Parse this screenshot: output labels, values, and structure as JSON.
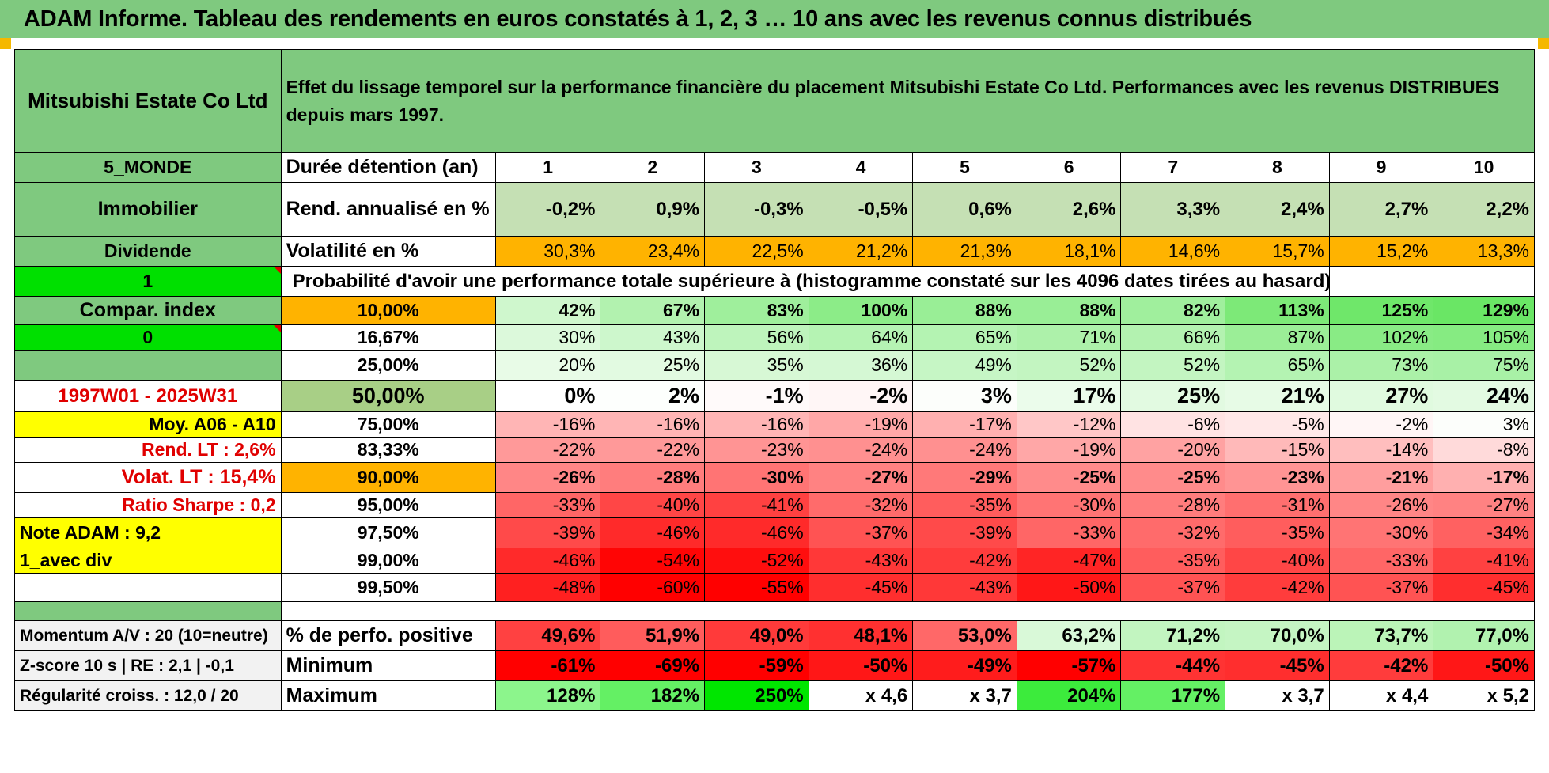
{
  "title": "ADAM Informe. Tableau des rendements en euros constatés à 1, 2, 3 … 10 ans avec les revenus connus distribués",
  "company": "Mitsubishi Estate Co Ltd",
  "header_description": "Effet du lissage temporel sur la performance financière du placement Mitsubishi Estate Co Ltd. Performances avec les revenus DISTRIBUES depuis mars 1997.",
  "colors": {
    "title_bg": "#7fc97f",
    "label_green": "#7fc97f",
    "bright_green": "#00e000",
    "yellow": "#ffff00",
    "orange": "#ffb300",
    "red_text": "#e00000"
  },
  "left": {
    "region": "5_MONDE",
    "sector": "Immobilier",
    "income_type": "Dividende",
    "selector_1": "1",
    "compar_index": "Compar. index",
    "selector_0": "0",
    "period": "1997W01 - 2025W31",
    "moy": "Moy. A06 - A10",
    "rend_lt": "Rend. LT :    2,6%",
    "volat_lt": "Volat. LT :    15,4%",
    "sharpe": "Ratio Sharpe :     0,2",
    "note": "Note ADAM : 9,2",
    "variant": "1_avec div",
    "momentum": "Momentum A/V : 20 (10=neutre)",
    "zscore": "Z-score 10 s | RE : 2,1 | -0,1",
    "regularite": "Régularité croiss. : 12,0 / 20"
  },
  "years": [
    "1",
    "2",
    "3",
    "4",
    "5",
    "6",
    "7",
    "8",
    "9",
    "10"
  ],
  "rows": {
    "duree_label": "Durée détention (an)",
    "rend_label": "Rend. annualisé en %",
    "rend_values": [
      "-0,2%",
      "0,9%",
      "-0,3%",
      "-0,5%",
      "0,6%",
      "2,6%",
      "3,3%",
      "2,4%",
      "2,7%",
      "2,2%"
    ],
    "vol_label": "Volatilité en %",
    "vol_values": [
      "30,3%",
      "23,4%",
      "22,5%",
      "21,2%",
      "21,3%",
      "18,1%",
      "14,6%",
      "15,7%",
      "15,2%",
      "13,3%"
    ],
    "prob_label": "Probabilité d'avoir une performance totale supérieure à (histogramme constaté sur les 4096 dates tirées au hasard)"
  },
  "probability_table": [
    {
      "level": "10,00%",
      "values": [
        "42%",
        "67%",
        "83%",
        "100%",
        "88%",
        "88%",
        "82%",
        "113%",
        "125%",
        "129%"
      ]
    },
    {
      "level": "16,67%",
      "values": [
        "30%",
        "43%",
        "56%",
        "64%",
        "65%",
        "71%",
        "66%",
        "87%",
        "102%",
        "105%"
      ]
    },
    {
      "level": "25,00%",
      "values": [
        "20%",
        "25%",
        "35%",
        "36%",
        "49%",
        "52%",
        "52%",
        "65%",
        "73%",
        "75%"
      ]
    },
    {
      "level": "50,00%",
      "values": [
        "0%",
        "2%",
        "-1%",
        "-2%",
        "3%",
        "17%",
        "25%",
        "21%",
        "27%",
        "24%"
      ]
    },
    {
      "level": "75,00%",
      "values": [
        "-16%",
        "-16%",
        "-16%",
        "-19%",
        "-17%",
        "-12%",
        "-6%",
        "-5%",
        "-2%",
        "3%"
      ]
    },
    {
      "level": "83,33%",
      "values": [
        "-22%",
        "-22%",
        "-23%",
        "-24%",
        "-24%",
        "-19%",
        "-20%",
        "-15%",
        "-14%",
        "-8%"
      ]
    },
    {
      "level": "90,00%",
      "values": [
        "-26%",
        "-28%",
        "-30%",
        "-27%",
        "-29%",
        "-25%",
        "-25%",
        "-23%",
        "-21%",
        "-17%"
      ]
    },
    {
      "level": "95,00%",
      "values": [
        "-33%",
        "-40%",
        "-41%",
        "-32%",
        "-35%",
        "-30%",
        "-28%",
        "-31%",
        "-26%",
        "-27%"
      ]
    },
    {
      "level": "97,50%",
      "values": [
        "-39%",
        "-46%",
        "-46%",
        "-37%",
        "-39%",
        "-33%",
        "-32%",
        "-35%",
        "-30%",
        "-34%"
      ]
    },
    {
      "level": "99,00%",
      "values": [
        "-46%",
        "-54%",
        "-52%",
        "-43%",
        "-42%",
        "-47%",
        "-35%",
        "-40%",
        "-33%",
        "-41%"
      ]
    },
    {
      "level": "99,50%",
      "values": [
        "-48%",
        "-60%",
        "-55%",
        "-45%",
        "-43%",
        "-50%",
        "-37%",
        "-42%",
        "-37%",
        "-45%"
      ]
    }
  ],
  "bottom": {
    "positive_label": "% de perfo. positive",
    "positive_values": [
      "49,6%",
      "51,9%",
      "49,0%",
      "48,1%",
      "53,0%",
      "63,2%",
      "71,2%",
      "70,0%",
      "73,7%",
      "77,0%"
    ],
    "min_label": "Minimum",
    "min_values": [
      "-61%",
      "-69%",
      "-59%",
      "-50%",
      "-49%",
      "-57%",
      "-44%",
      "-45%",
      "-42%",
      "-50%"
    ],
    "max_label": "Maximum",
    "max_values": [
      "128%",
      "182%",
      "250%",
      "x 4,6",
      "x 3,7",
      "204%",
      "177%",
      "x 3,7",
      "x 4,4",
      "x 5,2"
    ]
  }
}
